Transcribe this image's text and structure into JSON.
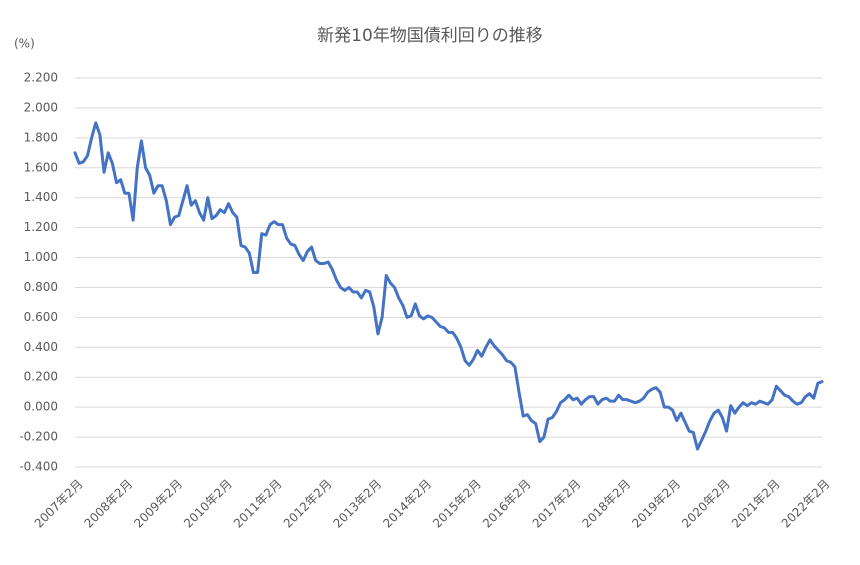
{
  "chart_data": {
    "type": "line",
    "title": "新発10年物国債利回りの推移",
    "y_label": "(%)",
    "categories": [
      "2007年2月",
      null,
      null,
      null,
      null,
      null,
      null,
      null,
      null,
      null,
      null,
      null,
      "2008年2月",
      null,
      null,
      null,
      null,
      null,
      null,
      null,
      null,
      null,
      null,
      null,
      "2009年2月",
      null,
      null,
      null,
      null,
      null,
      null,
      null,
      null,
      null,
      null,
      null,
      "2010年2月",
      null,
      null,
      null,
      null,
      null,
      null,
      null,
      null,
      null,
      null,
      null,
      "2011年2月",
      null,
      null,
      null,
      null,
      null,
      null,
      null,
      null,
      null,
      null,
      null,
      "2012年2月",
      null,
      null,
      null,
      null,
      null,
      null,
      null,
      null,
      null,
      null,
      null,
      "2013年2月",
      null,
      null,
      null,
      null,
      null,
      null,
      null,
      null,
      null,
      null,
      null,
      "2014年2月",
      null,
      null,
      null,
      null,
      null,
      null,
      null,
      null,
      null,
      null,
      null,
      "2015年2月",
      null,
      null,
      null,
      null,
      null,
      null,
      null,
      null,
      null,
      null,
      null,
      "2016年2月",
      null,
      null,
      null,
      null,
      null,
      null,
      null,
      null,
      null,
      null,
      null,
      "2017年2月",
      null,
      null,
      null,
      null,
      null,
      null,
      null,
      null,
      null,
      null,
      null,
      "2018年2月",
      null,
      null,
      null,
      null,
      null,
      null,
      null,
      null,
      null,
      null,
      null,
      "2019年2月",
      null,
      null,
      null,
      null,
      null,
      null,
      null,
      null,
      null,
      null,
      null,
      "2020年2月",
      null,
      null,
      null,
      null,
      null,
      null,
      null,
      null,
      null,
      null,
      null,
      "2021年2月",
      null,
      null,
      null,
      null,
      null,
      null,
      null,
      null,
      null,
      null,
      null,
      "2022年2月"
    ],
    "values": [
      1.7,
      1.63,
      1.64,
      1.68,
      1.8,
      1.9,
      1.82,
      1.57,
      1.7,
      1.63,
      1.5,
      1.52,
      1.43,
      1.43,
      1.25,
      1.6,
      1.78,
      1.6,
      1.55,
      1.43,
      1.48,
      1.48,
      1.38,
      1.22,
      1.27,
      1.28,
      1.38,
      1.48,
      1.35,
      1.38,
      1.3,
      1.25,
      1.4,
      1.26,
      1.28,
      1.32,
      1.3,
      1.36,
      1.3,
      1.27,
      1.08,
      1.07,
      1.03,
      0.9,
      0.9,
      1.16,
      1.15,
      1.22,
      1.24,
      1.22,
      1.22,
      1.13,
      1.09,
      1.08,
      1.02,
      0.98,
      1.04,
      1.07,
      0.98,
      0.96,
      0.96,
      0.97,
      0.92,
      0.85,
      0.8,
      0.78,
      0.8,
      0.77,
      0.77,
      0.73,
      0.78,
      0.77,
      0.67,
      0.49,
      0.6,
      0.88,
      0.83,
      0.8,
      0.73,
      0.68,
      0.6,
      0.61,
      0.69,
      0.61,
      0.59,
      0.61,
      0.6,
      0.57,
      0.54,
      0.53,
      0.5,
      0.5,
      0.46,
      0.4,
      0.31,
      0.28,
      0.32,
      0.38,
      0.34,
      0.4,
      0.45,
      0.41,
      0.38,
      0.35,
      0.31,
      0.3,
      0.27,
      0.1,
      -0.06,
      -0.05,
      -0.09,
      -0.11,
      -0.23,
      -0.2,
      -0.08,
      -0.07,
      -0.03,
      0.03,
      0.05,
      0.08,
      0.05,
      0.06,
      0.02,
      0.05,
      0.07,
      0.07,
      0.02,
      0.05,
      0.06,
      0.04,
      0.04,
      0.08,
      0.05,
      0.05,
      0.04,
      0.03,
      0.04,
      0.06,
      0.1,
      0.12,
      0.13,
      0.1,
      0.0,
      0.0,
      -0.02,
      -0.09,
      -0.04,
      -0.1,
      -0.16,
      -0.17,
      -0.28,
      -0.22,
      -0.16,
      -0.09,
      -0.04,
      -0.02,
      -0.07,
      -0.16,
      0.01,
      -0.04,
      0.0,
      0.03,
      0.01,
      0.03,
      0.02,
      0.04,
      0.03,
      0.02,
      0.05,
      0.14,
      0.11,
      0.08,
      0.07,
      0.04,
      0.02,
      0.03,
      0.07,
      0.09,
      0.06,
      0.16,
      0.17
    ],
    "color": "#4472c4",
    "ylim": [
      -0.4,
      2.2
    ],
    "yticks": [
      {
        "value": -0.4,
        "label": "-0.400"
      },
      {
        "value": -0.2,
        "label": "-0.200"
      },
      {
        "value": 0,
        "label": "0.000"
      },
      {
        "value": 0.2,
        "label": "0.200"
      },
      {
        "value": 0.4,
        "label": "0.400"
      },
      {
        "value": 0.6,
        "label": "0.600"
      },
      {
        "value": 0.8,
        "label": "0.800"
      },
      {
        "value": 1.0,
        "label": "1.000"
      },
      {
        "value": 1.2,
        "label": "1.200"
      },
      {
        "value": 1.4,
        "label": "1.400"
      },
      {
        "value": 1.6,
        "label": "1.600"
      },
      {
        "value": 1.8,
        "label": "1.800"
      },
      {
        "value": 2.0,
        "label": "2.000"
      },
      {
        "value": 2.2,
        "label": "2.200"
      }
    ],
    "grid": true
  }
}
